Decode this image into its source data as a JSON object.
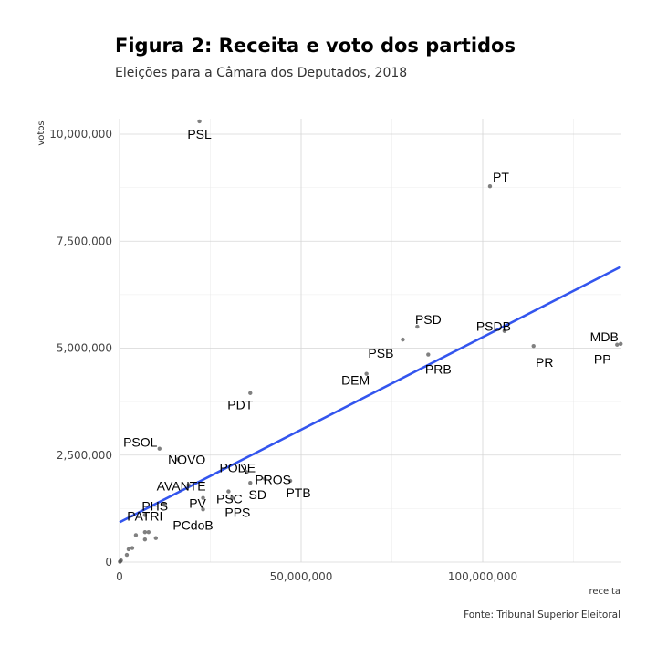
{
  "chart_data": {
    "type": "scatter",
    "title": "Figura 2: Receita e voto dos partidos",
    "subtitle": "Eleições para a Câmara dos Deputados, 2018",
    "caption": "Fonte: Tribunal Superior Eleitoral",
    "xlabel": "receita",
    "ylabel": "votos",
    "xlim": [
      0,
      135000000
    ],
    "ylim": [
      0,
      10300000
    ],
    "x_ticks": [
      0,
      50000000,
      100000000
    ],
    "x_tick_labels": [
      "0",
      "50,000,000",
      "100,000,000"
    ],
    "y_ticks": [
      0,
      2500000,
      5000000,
      7500000,
      10000000
    ],
    "y_tick_labels": [
      "0",
      "2,500,000",
      "5,000,000",
      "7,500,000",
      "10,000,000"
    ],
    "grid": true,
    "point_color": "#555555",
    "line_color": "#3355ee",
    "trend_line": {
      "x": [
        0,
        138000000
      ],
      "y": [
        930000,
        6900000
      ]
    },
    "points": [
      {
        "label": "PSL",
        "x": 22000000,
        "y": 10300000
      },
      {
        "label": "PT",
        "x": 102000000,
        "y": 8780000
      },
      {
        "label": "PSD",
        "x": 82000000,
        "y": 5500000
      },
      {
        "label": "PSDB",
        "x": 106000000,
        "y": 5400000
      },
      {
        "label": "MDB",
        "x": 138000000,
        "y": 5100000
      },
      {
        "label": "PP",
        "x": 137000000,
        "y": 5080000
      },
      {
        "label": "PR",
        "x": 114000000,
        "y": 5050000
      },
      {
        "label": "PSB",
        "x": 78000000,
        "y": 5200000
      },
      {
        "label": "PRB",
        "x": 85000000,
        "y": 4850000
      },
      {
        "label": "DEM",
        "x": 68000000,
        "y": 4400000
      },
      {
        "label": "PDT",
        "x": 36000000,
        "y": 3950000
      },
      {
        "label": "PSOL",
        "x": 11000000,
        "y": 2650000
      },
      {
        "label": "NOVO",
        "x": 16000000,
        "y": 2400000
      },
      {
        "label": "PODE",
        "x": 35000000,
        "y": 2100000
      },
      {
        "label": "PROS",
        "x": 40000000,
        "y": 1950000
      },
      {
        "label": "PTB",
        "x": 47000000,
        "y": 1900000
      },
      {
        "label": "PSC",
        "x": 30000000,
        "y": 1650000
      },
      {
        "label": "SD",
        "x": 36000000,
        "y": 1850000
      },
      {
        "label": "AVANTE",
        "x": 19000000,
        "y": 1800000
      },
      {
        "label": "PHS",
        "x": 12500000,
        "y": 1350000
      },
      {
        "label": "PV",
        "x": 23000000,
        "y": 1500000
      },
      {
        "label": "PPS",
        "x": 31000000,
        "y": 1500000
      },
      {
        "label": "PCdoB",
        "x": 23000000,
        "y": 1230000
      },
      {
        "label": "PATRI",
        "x": 7000000,
        "y": 1100000
      },
      {
        "label": "",
        "x": 12000000,
        "y": 1350000
      },
      {
        "label": "",
        "x": 8000000,
        "y": 700000
      },
      {
        "label": "",
        "x": 7000000,
        "y": 700000
      },
      {
        "label": "",
        "x": 10000000,
        "y": 560000
      },
      {
        "label": "",
        "x": 7000000,
        "y": 530000
      },
      {
        "label": "",
        "x": 4500000,
        "y": 630000
      },
      {
        "label": "",
        "x": 3500000,
        "y": 330000
      },
      {
        "label": "",
        "x": 2500000,
        "y": 300000
      },
      {
        "label": "",
        "x": 2000000,
        "y": 170000
      },
      {
        "label": "",
        "x": 400000,
        "y": 40000
      },
      {
        "label": "",
        "x": 200000,
        "y": 20000
      },
      {
        "label": "",
        "x": 100000,
        "y": 10000
      }
    ]
  }
}
